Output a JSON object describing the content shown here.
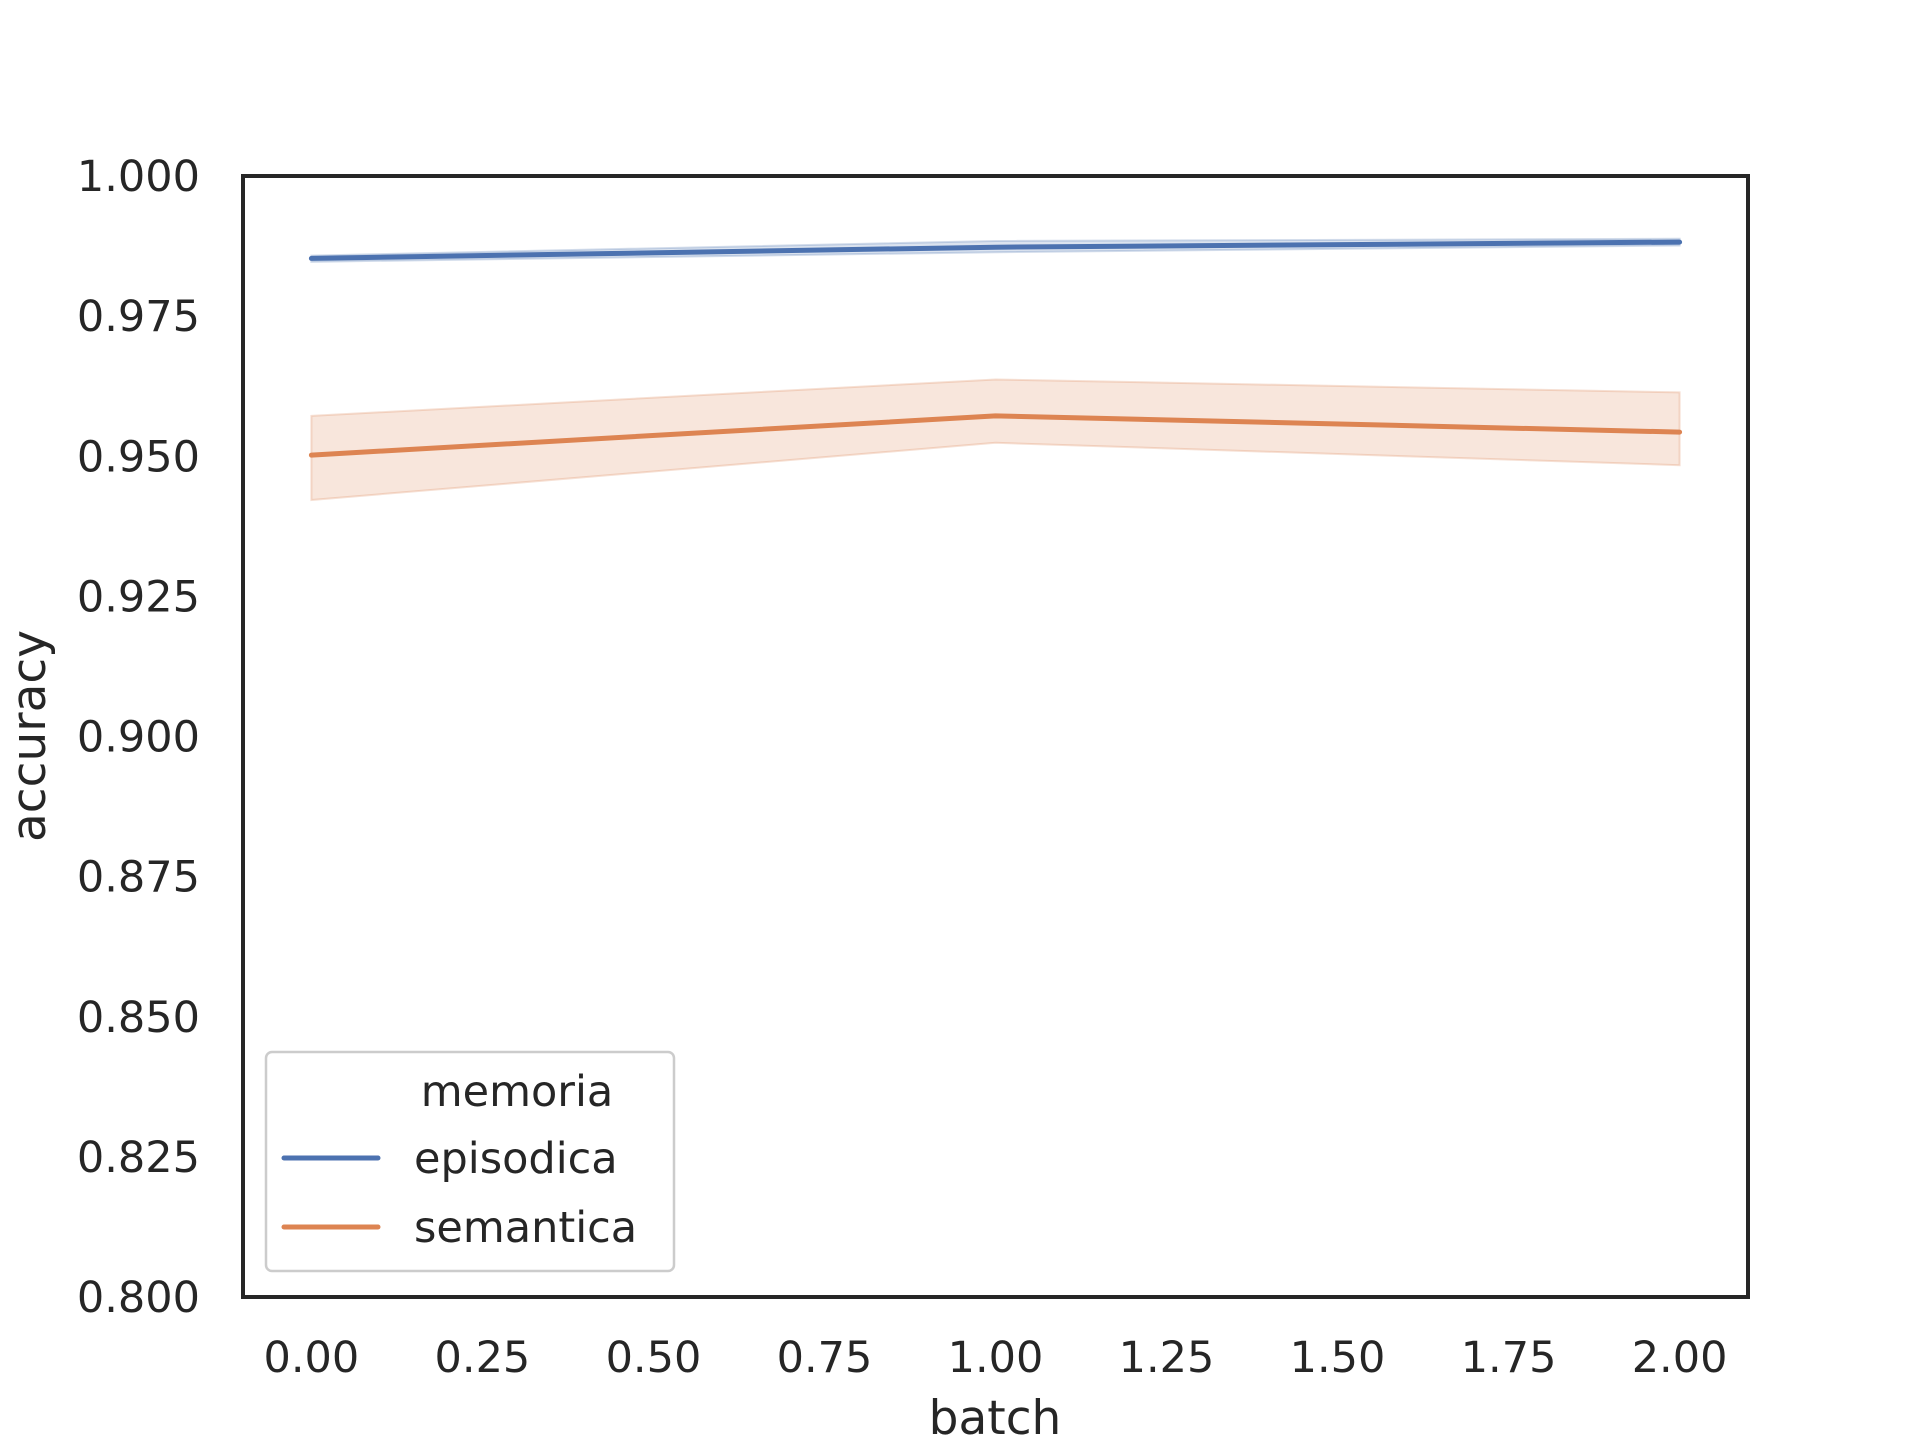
{
  "chart_data": {
    "type": "line",
    "title": "",
    "xlabel": "batch",
    "ylabel": "accuracy",
    "xlim": [
      -0.1,
      2.1
    ],
    "ylim": [
      0.8,
      1.0
    ],
    "xticks": [
      "0.00",
      "0.25",
      "0.50",
      "0.75",
      "1.00",
      "1.25",
      "1.50",
      "1.75",
      "2.00"
    ],
    "yticks": [
      "0.800",
      "0.825",
      "0.850",
      "0.875",
      "0.900",
      "0.925",
      "0.950",
      "0.975",
      "1.000"
    ],
    "grid": false,
    "legend": {
      "title": "memoria",
      "placement": "lower-left"
    },
    "x": [
      0,
      1,
      2
    ],
    "series": [
      {
        "name": "episodica",
        "color": "#4c72b0",
        "values": [
          0.9853,
          0.9873,
          0.9882
        ],
        "ci_low": [
          0.9847,
          0.9864,
          0.9876
        ],
        "ci_high": [
          0.9858,
          0.9884,
          0.9888
        ]
      },
      {
        "name": "semantica",
        "color": "#dd8452",
        "values": [
          0.9502,
          0.9572,
          0.9543
        ],
        "ci_low": [
          0.9422,
          0.9524,
          0.9484
        ],
        "ci_high": [
          0.9572,
          0.9637,
          0.9614
        ]
      }
    ]
  }
}
